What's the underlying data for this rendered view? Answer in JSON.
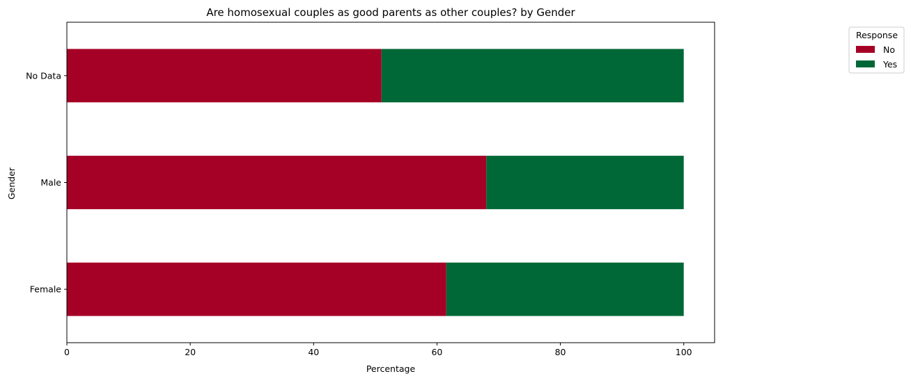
{
  "chart_data": {
    "type": "bar",
    "orientation": "horizontal",
    "stacked": true,
    "title": "Are homosexual couples as good parents as other couples? by Gender",
    "xlabel": "Percentage",
    "ylabel": "Gender",
    "xlim": [
      0,
      105
    ],
    "xticks": [
      0,
      20,
      40,
      60,
      80,
      100
    ],
    "xtick_labels": [
      "0",
      "20",
      "40",
      "60",
      "80",
      "100"
    ],
    "categories": [
      "Female",
      "Male",
      "No Data"
    ],
    "series": [
      {
        "name": "No",
        "color": "#a50026",
        "values": [
          61.5,
          68.0,
          51.0
        ]
      },
      {
        "name": "Yes",
        "color": "#006837",
        "values": [
          38.5,
          32.0,
          49.0
        ]
      }
    ],
    "legend": {
      "title": "Response",
      "position": "outside-top-right"
    },
    "grid": false
  }
}
